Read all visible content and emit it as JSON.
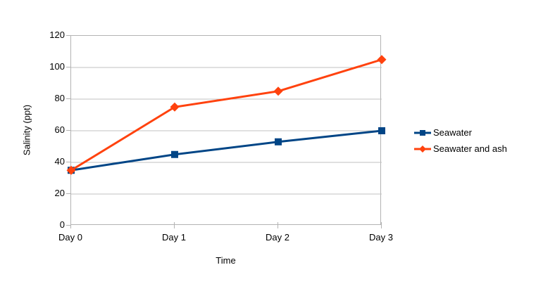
{
  "chart_data": {
    "type": "line",
    "title": "",
    "xlabel": "Time",
    "ylabel": "Salinity (ppt)",
    "categories": [
      "Day 0",
      "Day 1",
      "Day 2",
      "Day 3"
    ],
    "series": [
      {
        "name": "Seawater",
        "values": [
          35,
          45,
          53,
          60
        ],
        "color": "#004586",
        "marker": "square"
      },
      {
        "name": "Seawater and ash",
        "values": [
          35,
          75,
          85,
          105
        ],
        "color": "#FF420E",
        "marker": "diamond"
      }
    ],
    "ylim": [
      0,
      120
    ],
    "y_ticks": [
      0,
      20,
      40,
      60,
      80,
      100,
      120
    ],
    "grid": true,
    "legend_position": "right"
  },
  "colors": {
    "background": "#ffffff",
    "gridline": "#c0c0c0",
    "axis": "#b3b3b3",
    "text": "#000000"
  }
}
